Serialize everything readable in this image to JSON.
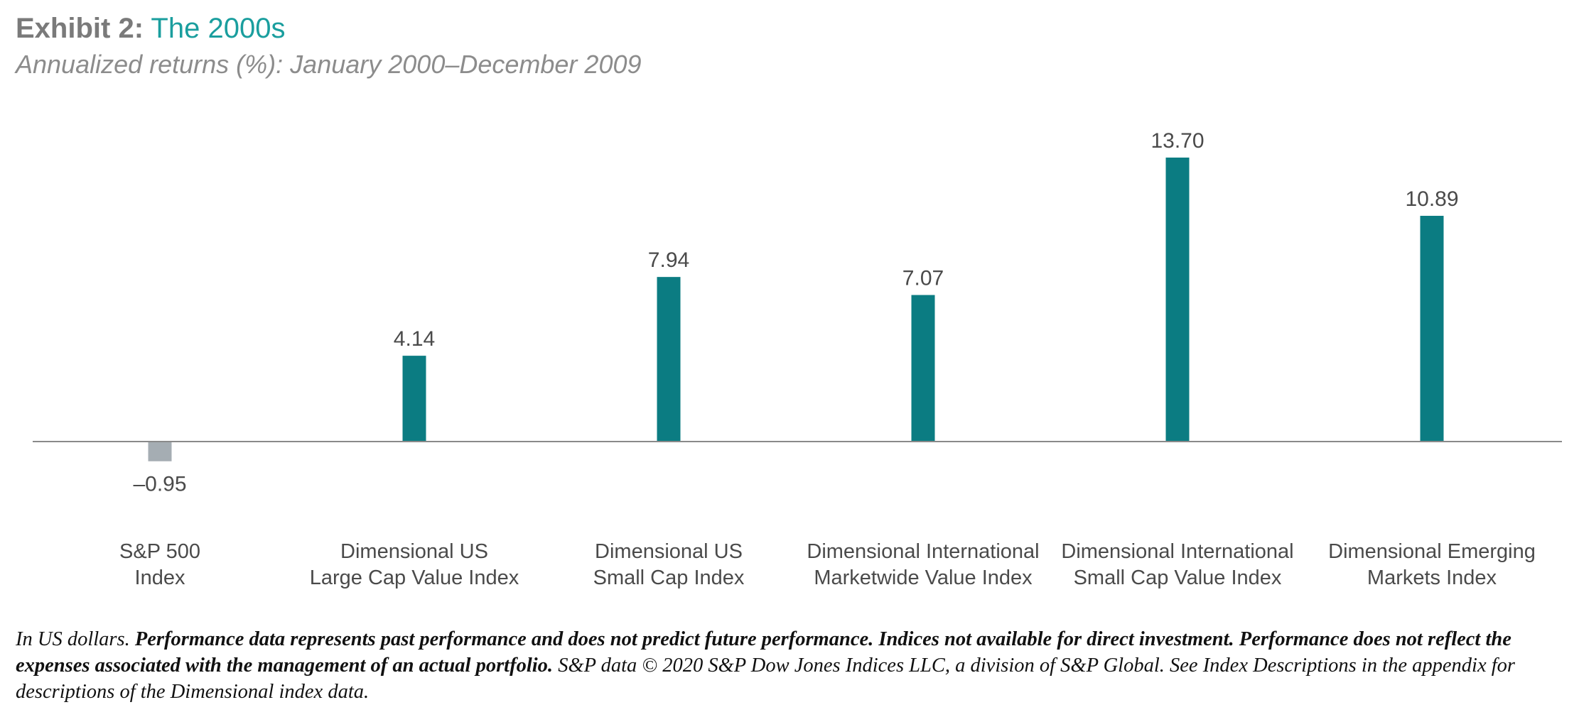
{
  "header": {
    "title_lead": "Exhibit 2:",
    "title_accent": "The 2000s",
    "subtitle": "Annualized returns (%): January 2000–December 2009"
  },
  "colors": {
    "positive_bar": "#0b7c82",
    "negative_bar": "#a5adb3",
    "axis": "#8a8a8a",
    "title_lead": "#7a7a7a",
    "title_accent": "#1a9e9e"
  },
  "chart_data": {
    "type": "bar",
    "title": "Exhibit 2: The 2000s",
    "subtitle": "Annualized returns (%): January 2000–December 2009",
    "categories": [
      [
        "S&P 500",
        "Index"
      ],
      [
        "Dimensional US",
        "Large Cap Value Index"
      ],
      [
        "Dimensional US",
        "Small Cap Index"
      ],
      [
        "Dimensional International",
        "Marketwide Value Index"
      ],
      [
        "Dimensional International",
        "Small Cap Value Index"
      ],
      [
        "Dimensional Emerging",
        "Markets Index"
      ]
    ],
    "values": [
      -0.95,
      4.14,
      7.94,
      7.07,
      13.7,
      10.89
    ],
    "value_labels": [
      "–0.95",
      "4.14",
      "7.94",
      "7.07",
      "13.70",
      "10.89"
    ],
    "xlabel": "",
    "ylabel": "",
    "ylim": [
      -0.95,
      13.7
    ],
    "grid": false,
    "legend": "none"
  },
  "footnote": {
    "part1": "In US dollars. ",
    "bold": "Performance data represents past performance and does not predict future performance. Indices not available for direct investment. Performance does not reflect the expenses associated with the management of an actual portfolio.",
    "part2": " S&P data © 2020 S&P Dow Jones Indices LLC, a division of S&P Global. See Index Descriptions in the appendix for descriptions of the Dimensional index data."
  }
}
